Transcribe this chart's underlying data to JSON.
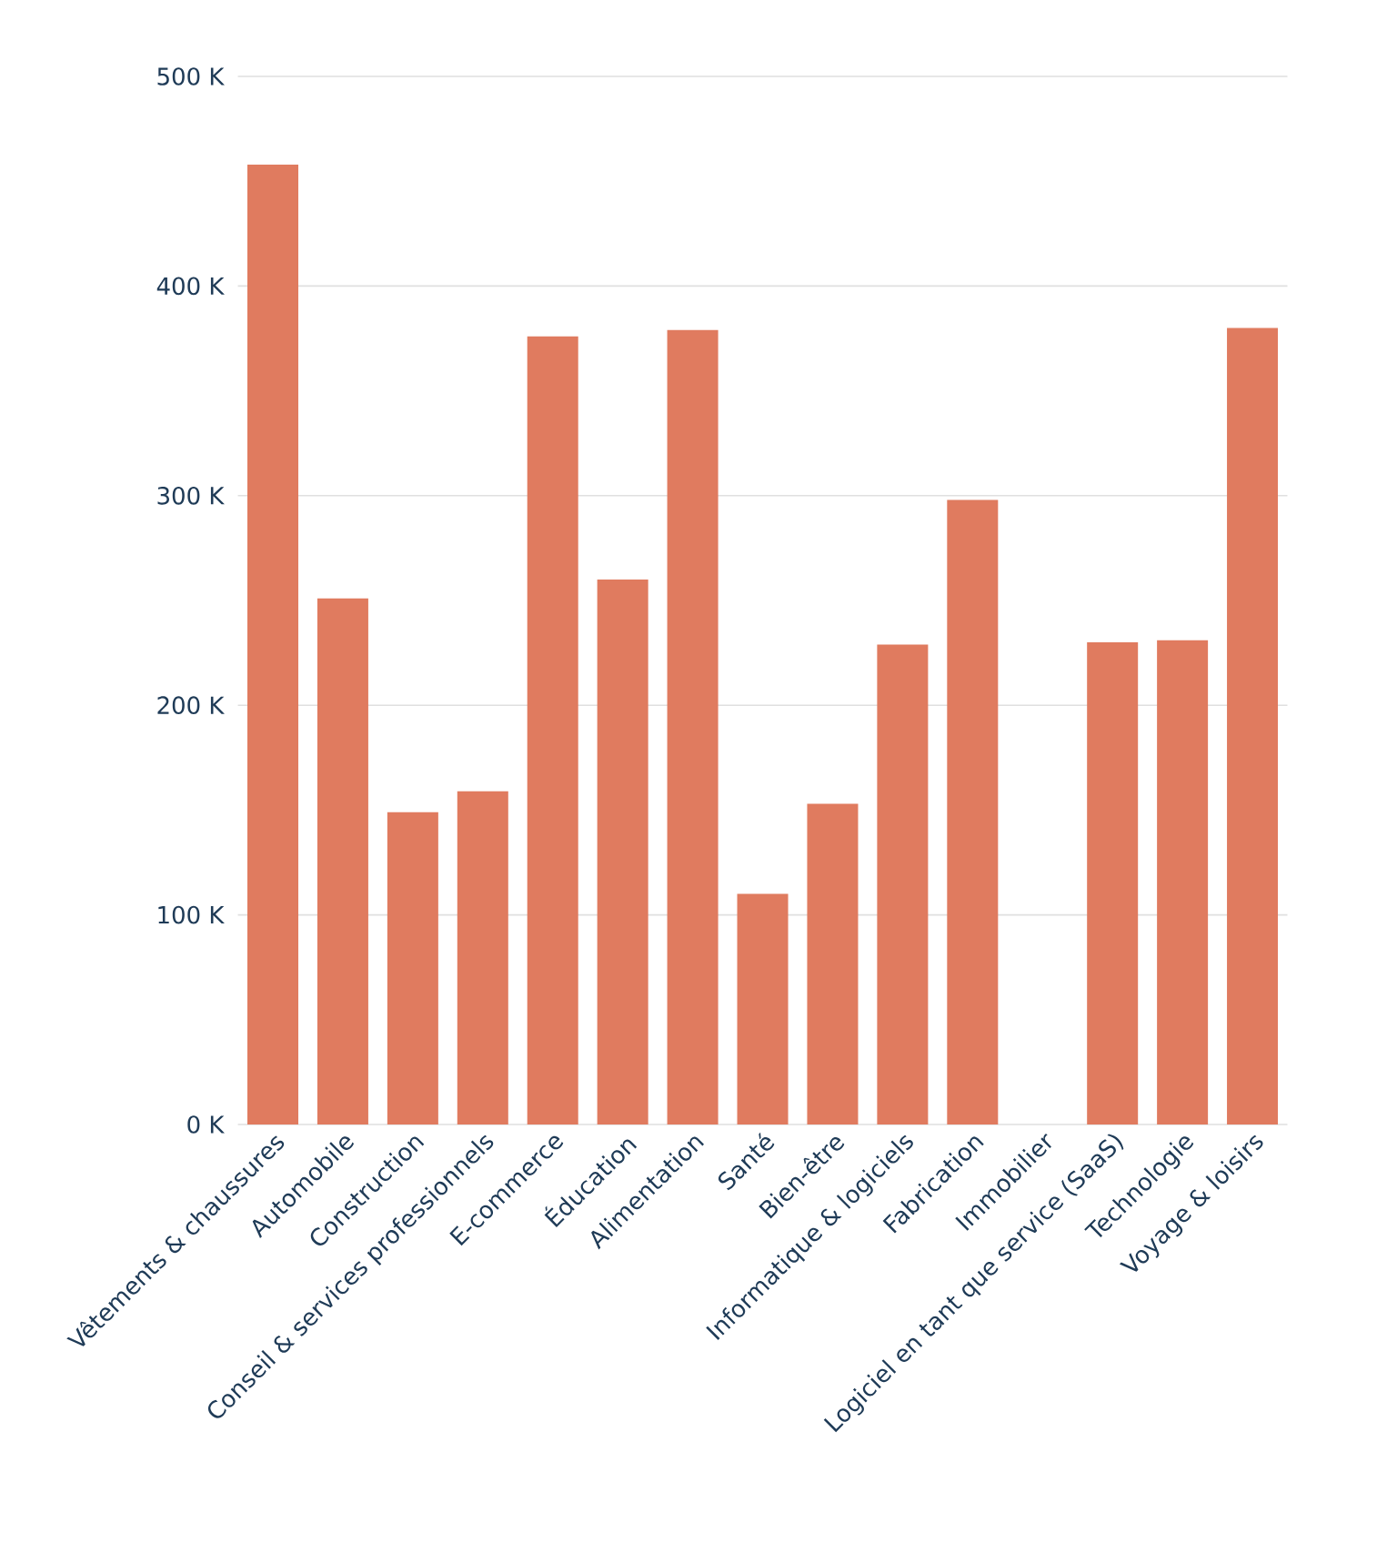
{
  "chart_data": {
    "type": "bar",
    "categories": [
      "Vêtements & chaussures",
      "Automobile",
      "Construction",
      "Conseil & services professionnels",
      "E-commerce",
      "Éducation",
      "Alimentation",
      "Santé",
      "Bien-être",
      "Informatique & logiciels",
      "Fabrication",
      "Immobilier",
      "Logiciel en tant que service (SaaS)",
      "Technologie",
      "Voyage & loisirs"
    ],
    "values": [
      458,
      251,
      149,
      159,
      376,
      260,
      379,
      110,
      153,
      229,
      298,
      0,
      230,
      231,
      380
    ],
    "color": "#e07b5f",
    "ylim": [
      0,
      500
    ],
    "yticks": [
      {
        "value": 0,
        "label": "0 K"
      },
      {
        "value": 100,
        "label": "100 K"
      },
      {
        "value": 200,
        "label": "200 K"
      },
      {
        "value": 300,
        "label": "300 K"
      },
      {
        "value": 400,
        "label": "400 K"
      },
      {
        "value": 500,
        "label": "500 K"
      }
    ],
    "grid": "y"
  }
}
